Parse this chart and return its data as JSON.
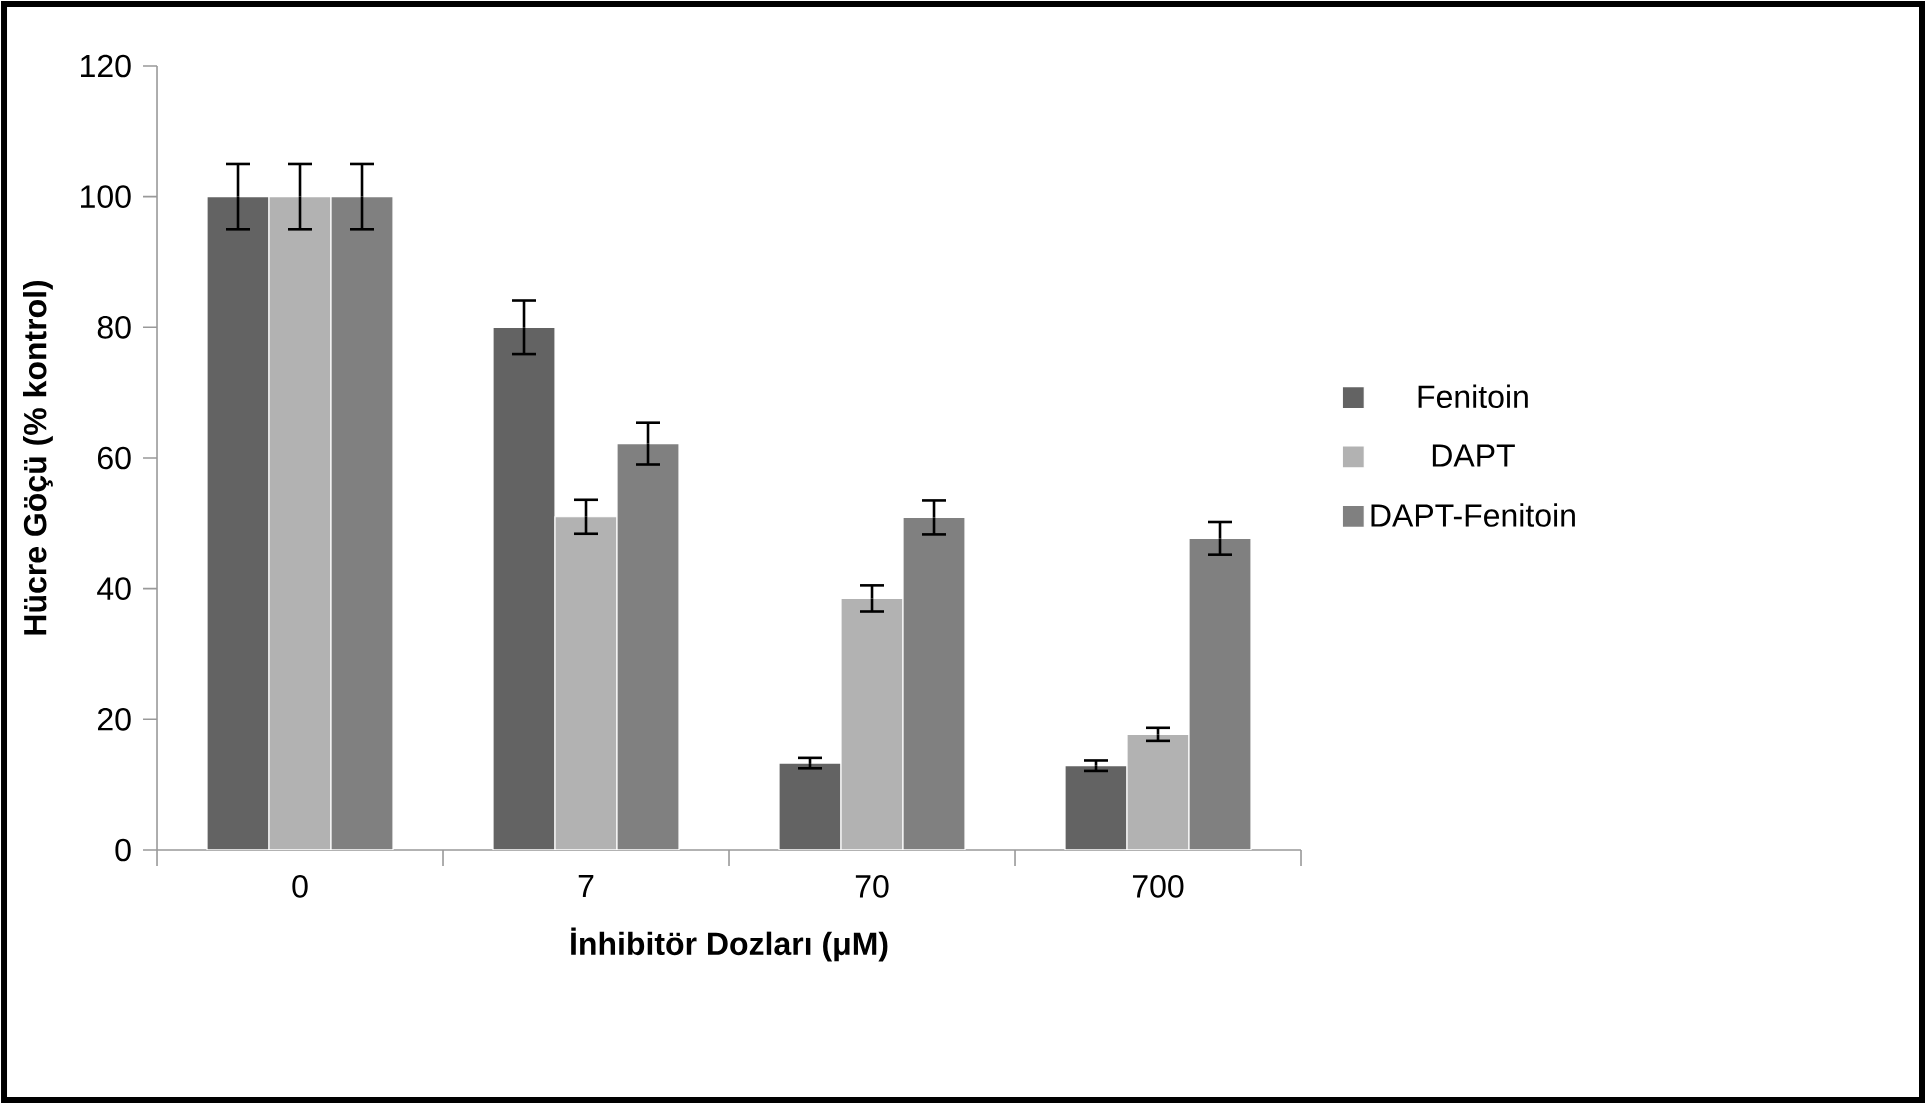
{
  "chart_data": {
    "type": "bar",
    "xlabel": "İnhibitör Dozları (μM)",
    "ylabel": "Hücre Göçü (% kontrol)",
    "categories": [
      "0",
      "7",
      "70",
      "700"
    ],
    "series": [
      {
        "name": "Fenitoin",
        "color": "#636363",
        "values": [
          100,
          80,
          13.3,
          12.9
        ],
        "errors": [
          5,
          4.1,
          0.8,
          0.8
        ]
      },
      {
        "name": "DAPT",
        "color": "#b2b2b2",
        "values": [
          100,
          51,
          38.5,
          17.7
        ],
        "errors": [
          5,
          2.6,
          2,
          1
        ]
      },
      {
        "name": "DAPT-Fenitoin",
        "color": "#808080",
        "values": [
          100,
          62.2,
          50.9,
          47.7
        ],
        "errors": [
          5,
          3.2,
          2.6,
          2.5
        ]
      }
    ],
    "ylim": [
      0,
      120
    ],
    "yticks": [
      0,
      20,
      40,
      60,
      80,
      100,
      120
    ],
    "grid": false,
    "legend": "right"
  }
}
